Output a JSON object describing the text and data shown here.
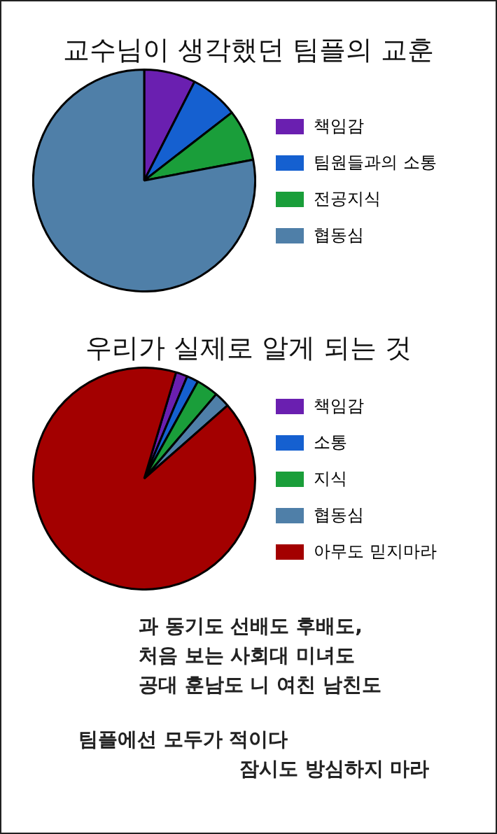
{
  "chart_data": [
    {
      "type": "pie",
      "title": "교수님이 생각했던 팀플의 교훈",
      "categories": [
        "책임감",
        "팀원들과의 소통",
        "전공지식",
        "협동심"
      ],
      "values": [
        7.5,
        7,
        7.5,
        78
      ],
      "colors": [
        "#6a1fb0",
        "#1560d0",
        "#1a9e3a",
        "#4f7fa8"
      ],
      "legend": "right"
    },
    {
      "type": "pie",
      "title": "우리가 실제로 알게 되는 것",
      "categories": [
        "책임감",
        "소통",
        "지식",
        "협동심",
        "아무도 믿지마라"
      ],
      "values": [
        1.7,
        1.7,
        3.2,
        2.3,
        91.1
      ],
      "colors": [
        "#6a1fb0",
        "#1560d0",
        "#1a9e3a",
        "#4f7fa8",
        "#a30000"
      ],
      "legend": "right",
      "annotations": [
        "과 동기도 선배도 후배도,",
        "처음 보는 사회대 미녀도",
        "공대 훈남도 니 여친 남친도",
        "팀플에선 모두가 적이다",
        "잠시도 방심하지 마라"
      ]
    }
  ]
}
